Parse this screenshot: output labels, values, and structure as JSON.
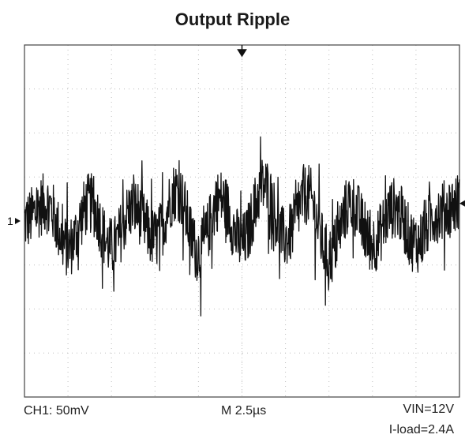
{
  "chart_data": {
    "type": "line",
    "title": "Output Ripple",
    "xlabel": "",
    "ylabel": "",
    "grid": true,
    "grid_divisions": {
      "x": 10,
      "y": 8
    },
    "channel_marker": "1",
    "x_unit": "µs",
    "y_unit": "mV",
    "x_scale_per_div": 2.5,
    "y_scale_per_div": 50,
    "xlim": [
      0,
      25
    ],
    "ylim": [
      -200,
      200
    ],
    "series": [
      {
        "x": [
          0,
          1.25,
          2.5,
          3.75,
          5,
          6.25,
          7.5,
          8.75,
          10,
          11.25,
          12.5,
          13.75,
          15,
          16.25,
          17.5,
          18.75,
          20,
          21.25,
          22.5,
          23.75,
          25
        ],
        "values": [
          0,
          20,
          -30,
          20,
          -30,
          15,
          -20,
          35,
          -35,
          25,
          -25,
          40,
          -20,
          30,
          -40,
          20,
          -25,
          15,
          -25,
          10,
          20
        ],
        "noise_pp": 35
      }
    ],
    "annotations": {
      "ch1": "CH1: 50mV",
      "timebase": "M 2.5µs",
      "vin": "VIN=12V",
      "iload": "I-load=2.4A"
    }
  },
  "colors": {
    "trace": "#111111",
    "grid": "#bdbdbd",
    "frame": "#444444",
    "background": "#ffffff"
  }
}
